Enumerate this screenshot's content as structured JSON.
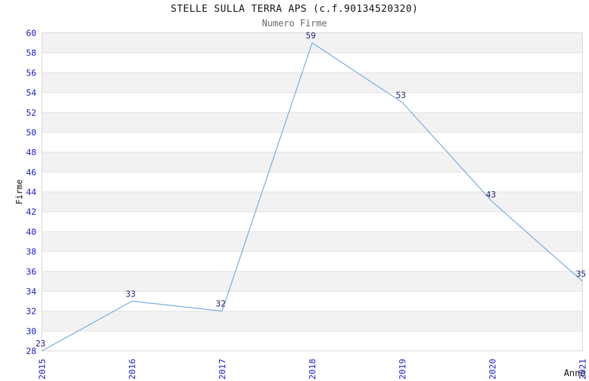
{
  "page": {
    "background": "#FFFFFF"
  },
  "chart_data": {
    "type": "line",
    "title": "STELLE SULLA TERRA APS (c.f.90134520320)",
    "subtitle": "Numero Firme",
    "xlabel": "Anno",
    "ylabel": "Firme",
    "x": [
      2015,
      2016,
      2017,
      2018,
      2019,
      2020,
      2021
    ],
    "values": [
      23,
      33,
      32,
      59,
      53,
      43,
      35
    ],
    "ylim": [
      28,
      60
    ],
    "ytick_step": 2,
    "clamp_values_to_ylim": true,
    "grid": "horizontal-bands",
    "legend": "none",
    "colors": {
      "line": "#6FA8E0",
      "tick_label": "#2222CC",
      "data_label": "#22227A",
      "band": "#F2F2F2",
      "grid_line": "#E2E2E2",
      "plot_border": "#D4D4D4",
      "title": "#111111",
      "subtitle": "#666666",
      "axis_title": "#111111"
    }
  }
}
